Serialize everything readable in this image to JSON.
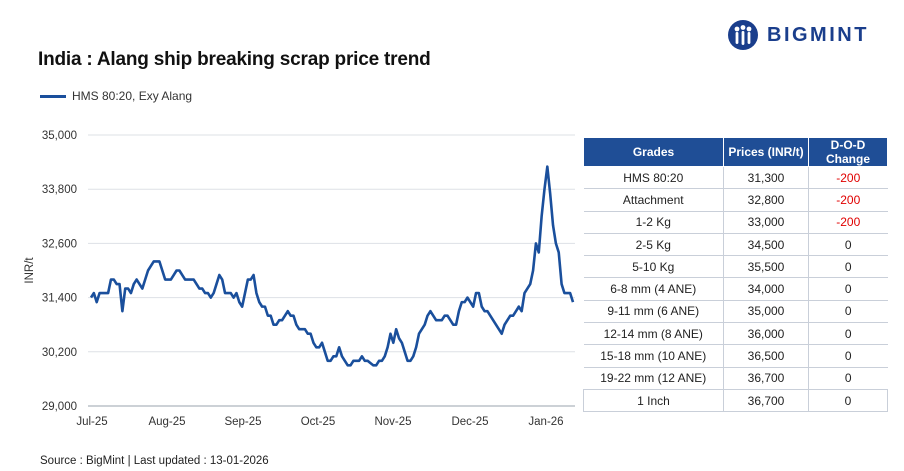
{
  "header": {
    "title": "India : Alang ship breaking scrap price trend",
    "logo_text": "BIGMINT"
  },
  "colors": {
    "series": "#1a4f9c",
    "table_header": "#1f4e96",
    "negative": "#e00000",
    "brand": "#1a3e8c"
  },
  "chart_data": {
    "type": "line",
    "title": "India : Alang ship breaking scrap price trend",
    "ylabel": "INR/t",
    "xlabel": "",
    "ylim": [
      29000,
      35000
    ],
    "yticks": [
      29000,
      30200,
      31400,
      32600,
      33800,
      35000
    ],
    "ytick_labels": [
      "29,000",
      "30,200",
      "31,400",
      "32,600",
      "33,800",
      "35,000"
    ],
    "xtick_labels": [
      "Jul-25",
      "Aug-25",
      "Sep-25",
      "Oct-25",
      "Nov-25",
      "Dec-25",
      "Jan-26"
    ],
    "grid": "horizontal",
    "legend": "top-left",
    "series": [
      {
        "name": "HMS 80:20, Exy Alang",
        "values": [
          31400,
          31500,
          31300,
          31500,
          31500,
          31500,
          31500,
          31800,
          31800,
          31700,
          31700,
          31100,
          31600,
          31600,
          31500,
          31700,
          31800,
          31700,
          31600,
          31800,
          32000,
          32100,
          32200,
          32200,
          32200,
          32000,
          31800,
          31800,
          31800,
          31900,
          32000,
          32000,
          31900,
          31800,
          31800,
          31800,
          31800,
          31700,
          31600,
          31600,
          31500,
          31500,
          31400,
          31500,
          31700,
          31900,
          31800,
          31500,
          31500,
          31500,
          31400,
          31500,
          31300,
          31200,
          31500,
          31800,
          31800,
          31900,
          31500,
          31300,
          31200,
          31200,
          31000,
          31000,
          30800,
          30800,
          30900,
          30900,
          31000,
          31100,
          31000,
          31000,
          30800,
          30700,
          30700,
          30700,
          30600,
          30600,
          30400,
          30300,
          30300,
          30400,
          30200,
          30000,
          30000,
          30100,
          30100,
          30300,
          30100,
          30000,
          29900,
          29900,
          30000,
          30000,
          30000,
          30100,
          30000,
          30000,
          29950,
          29900,
          29900,
          30000,
          30000,
          30100,
          30300,
          30600,
          30400,
          30700,
          30500,
          30400,
          30200,
          30000,
          30000,
          30100,
          30300,
          30600,
          30700,
          30800,
          31000,
          31100,
          31000,
          30900,
          30900,
          30900,
          31000,
          31000,
          30900,
          30800,
          30800,
          31100,
          31300,
          31300,
          31400,
          31300,
          31200,
          31500,
          31500,
          31200,
          31100,
          31100,
          31000,
          30900,
          30800,
          30700,
          30600,
          30800,
          30900,
          31000,
          31000,
          31100,
          31200,
          31100,
          31500,
          31600,
          31700,
          32000,
          32600,
          32400,
          33200,
          33800,
          34300,
          33700,
          33000,
          32600,
          32400,
          31700,
          31500,
          31500,
          31500,
          31300
        ]
      }
    ]
  },
  "table": {
    "headers": [
      "Grades",
      "Prices (INR/t)",
      "D-O-D Change"
    ],
    "rows": [
      [
        "HMS 80:20",
        "31,300",
        "-200"
      ],
      [
        "Attachment",
        "32,800",
        "-200"
      ],
      [
        "1-2 Kg",
        "33,000",
        "-200"
      ],
      [
        "2-5 Kg",
        "34,500",
        "0"
      ],
      [
        "5-10 Kg",
        "35,500",
        "0"
      ],
      [
        "6-8 mm (4 ANE)",
        "34,000",
        "0"
      ],
      [
        "9-11 mm (6 ANE)",
        "35,000",
        "0"
      ],
      [
        "12-14 mm (8 ANE)",
        "36,000",
        "0"
      ],
      [
        "15-18 mm (10 ANE)",
        "36,500",
        "0"
      ],
      [
        "19-22 mm (12 ANE)",
        "36,700",
        "0"
      ],
      [
        "1 Inch",
        "36,700",
        "0"
      ]
    ]
  },
  "footer": {
    "source": "Source : BigMint | Last updated : 13-01-2026"
  }
}
